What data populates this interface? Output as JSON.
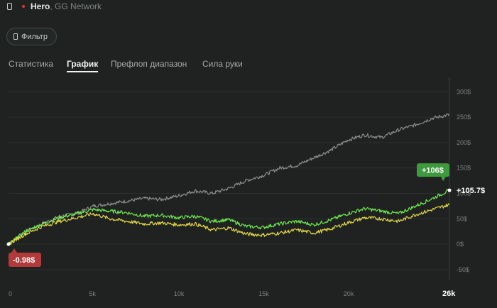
{
  "header": {
    "player_name": "Hero",
    "separator": ",",
    "network": "GG Network"
  },
  "filter_label": "Фильтр",
  "tabs": [
    {
      "label": "Статистика",
      "active": false
    },
    {
      "label": "График",
      "active": true
    },
    {
      "label": "Префлоп диапазон",
      "active": false
    },
    {
      "label": "Сила руки",
      "active": false
    }
  ],
  "colors": {
    "background": "#1f2220",
    "total_line": "#8c8c8c",
    "green_line": "#6ee84e",
    "yellow_line": "#e2d844",
    "positive_badge": "#3e9a3c",
    "negative_badge": "#b33a3a"
  },
  "chart_data": {
    "type": "line",
    "x_ticks": [
      "0",
      "5k",
      "10k",
      "15k",
      "20k",
      "26k"
    ],
    "x_tick_values": [
      0,
      5000,
      10000,
      15000,
      20000,
      26000
    ],
    "y_ticks": [
      "300$",
      "250$",
      "200$",
      "150$",
      "100$",
      "50$",
      "0$",
      "-50$"
    ],
    "y_tick_values": [
      300,
      250,
      200,
      150,
      100,
      50,
      0,
      -50
    ],
    "xlim": [
      0,
      26000
    ],
    "ylim": [
      -60,
      320
    ],
    "series": [
      {
        "name": "total",
        "color": "#8c8c8c",
        "x": [
          0,
          1000,
          2000,
          3000,
          4000,
          5000,
          6000,
          7000,
          8000,
          9000,
          10000,
          11000,
          12000,
          13000,
          14000,
          15000,
          16000,
          17000,
          18000,
          19000,
          20000,
          21000,
          22000,
          23000,
          24000,
          25000,
          26000
        ],
        "y": [
          0,
          25,
          40,
          55,
          60,
          75,
          80,
          85,
          90,
          88,
          95,
          105,
          100,
          110,
          125,
          135,
          150,
          155,
          170,
          185,
          205,
          215,
          210,
          225,
          235,
          248,
          255
        ]
      },
      {
        "name": "green",
        "color": "#6ee84e",
        "x": [
          0,
          1000,
          2000,
          3000,
          4000,
          5000,
          6000,
          7000,
          8000,
          9000,
          10000,
          11000,
          12000,
          13000,
          14000,
          15000,
          16000,
          17000,
          18000,
          19000,
          20000,
          21000,
          22000,
          23000,
          24000,
          25000,
          26000
        ],
        "y": [
          0,
          25,
          40,
          52,
          60,
          68,
          65,
          62,
          55,
          57,
          52,
          55,
          45,
          48,
          35,
          33,
          40,
          45,
          38,
          48,
          60,
          70,
          65,
          60,
          75,
          90,
          106
        ]
      },
      {
        "name": "yellow",
        "color": "#e2d844",
        "x": [
          0,
          1000,
          2000,
          3000,
          4000,
          5000,
          6000,
          7000,
          8000,
          9000,
          10000,
          11000,
          12000,
          13000,
          14000,
          15000,
          16000,
          17000,
          18000,
          19000,
          20000,
          21000,
          22000,
          23000,
          24000,
          25000,
          26000
        ],
        "y": [
          0,
          20,
          35,
          45,
          52,
          60,
          50,
          45,
          40,
          42,
          38,
          40,
          28,
          32,
          20,
          18,
          22,
          28,
          22,
          30,
          42,
          52,
          50,
          45,
          58,
          68,
          78
        ]
      }
    ],
    "annotations": {
      "end_value_label": "+105.7$",
      "end_badge": "+106$",
      "start_badge": "-0.98$"
    }
  }
}
